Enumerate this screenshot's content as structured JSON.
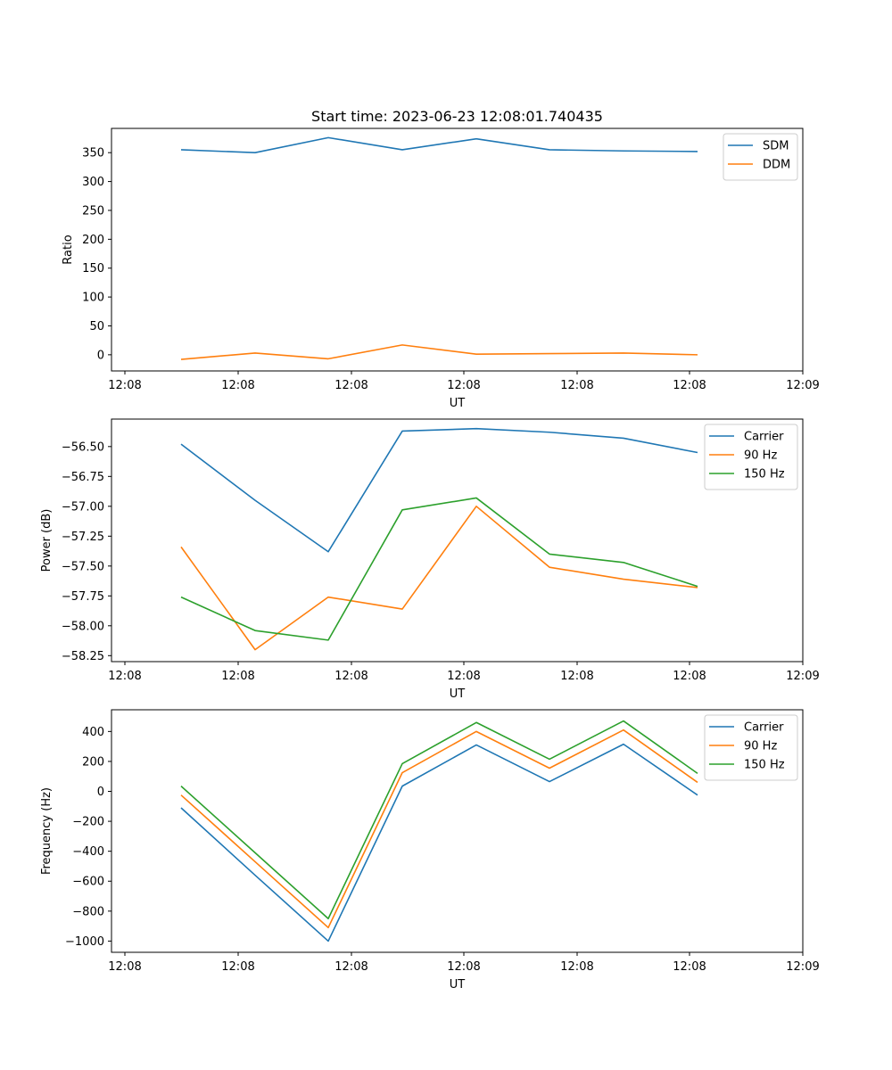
{
  "figure": {
    "title": "Start time: 2023-06-23 12:08:01.740435"
  },
  "chart_data": [
    {
      "type": "line",
      "title": "Start time: 2023-06-23 12:08:01.740435",
      "xlabel": "UT",
      "ylabel": "Ratio",
      "xtick_labels": [
        "12:08",
        "12:08",
        "12:08",
        "12:08",
        "12:08",
        "12:08",
        "12:09"
      ],
      "yticks": [
        0,
        50,
        100,
        150,
        200,
        250,
        300,
        350
      ],
      "ylim": [
        -28,
        392
      ],
      "grid": false,
      "legend_position": "upper right",
      "series": [
        {
          "name": "SDM",
          "color": "#1f77b4",
          "values": [
            355,
            350,
            376,
            355,
            374,
            355,
            353,
            352
          ]
        },
        {
          "name": "DDM",
          "color": "#ff7f0e",
          "values": [
            -8,
            3,
            -7,
            17,
            1,
            2,
            3,
            0
          ]
        }
      ]
    },
    {
      "type": "line",
      "title": "",
      "xlabel": "UT",
      "ylabel": "Power (dB)",
      "xtick_labels": [
        "12:08",
        "12:08",
        "12:08",
        "12:08",
        "12:08",
        "12:08",
        "12:09"
      ],
      "yticks": [
        -58.25,
        -58.0,
        -57.75,
        -57.5,
        -57.25,
        -57.0,
        -56.75,
        -56.5
      ],
      "ytick_labels": [
        "−58.25",
        "−58.00",
        "−57.75",
        "−57.50",
        "−57.25",
        "−57.00",
        "−56.75",
        "−56.50"
      ],
      "ylim": [
        -58.3,
        -56.27
      ],
      "grid": false,
      "legend_position": "upper right",
      "series": [
        {
          "name": "Carrier",
          "color": "#1f77b4",
          "values": [
            -56.48,
            -56.95,
            -57.38,
            -56.37,
            -56.35,
            -56.38,
            -56.43,
            -56.55
          ]
        },
        {
          "name": "90 Hz",
          "color": "#ff7f0e",
          "values": [
            -57.34,
            -58.2,
            -57.76,
            -57.86,
            -57.0,
            -57.51,
            -57.61,
            -57.68
          ]
        },
        {
          "name": "150 Hz",
          "color": "#2ca02c",
          "values": [
            -57.76,
            -58.04,
            -58.12,
            -57.03,
            -56.93,
            -57.4,
            -57.47,
            -57.67
          ]
        }
      ]
    },
    {
      "type": "line",
      "title": "",
      "xlabel": "UT",
      "ylabel": "Frequency (Hz)",
      "xtick_labels": [
        "12:08",
        "12:08",
        "12:08",
        "12:08",
        "12:08",
        "12:08",
        "12:09"
      ],
      "yticks": [
        -1000,
        -800,
        -600,
        -400,
        -200,
        0,
        200,
        400
      ],
      "ytick_labels": [
        "−1000",
        "−800",
        "−600",
        "−400",
        "−200",
        "0",
        "200",
        "400"
      ],
      "ylim": [
        -1075,
        545
      ],
      "grid": false,
      "legend_position": "upper right",
      "series": [
        {
          "name": "Carrier",
          "color": "#1f77b4",
          "values": [
            -110,
            -560,
            -1000,
            35,
            310,
            65,
            315,
            -25
          ]
        },
        {
          "name": "90 Hz",
          "color": "#ff7f0e",
          "values": [
            -25,
            -470,
            -910,
            125,
            400,
            155,
            410,
            60
          ]
        },
        {
          "name": "150 Hz",
          "color": "#2ca02c",
          "values": [
            35,
            -410,
            -850,
            185,
            460,
            215,
            470,
            120
          ]
        }
      ]
    }
  ]
}
